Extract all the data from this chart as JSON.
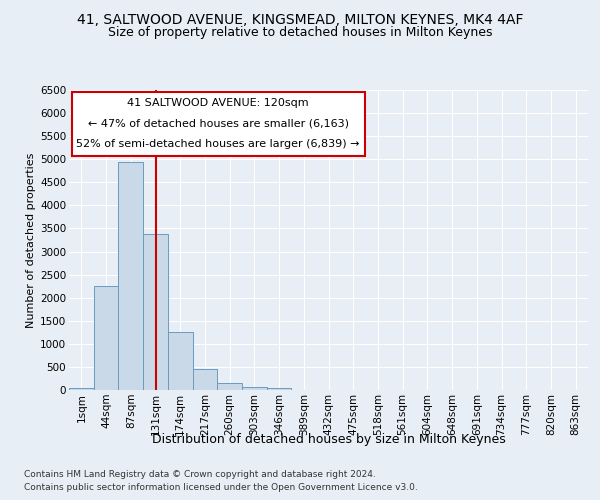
{
  "title_line1": "41, SALTWOOD AVENUE, KINGSMEAD, MILTON KEYNES, MK4 4AF",
  "title_line2": "Size of property relative to detached houses in Milton Keynes",
  "xlabel": "Distribution of detached houses by size in Milton Keynes",
  "ylabel": "Number of detached properties",
  "footer_line1": "Contains HM Land Registry data © Crown copyright and database right 2024.",
  "footer_line2": "Contains public sector information licensed under the Open Government Licence v3.0.",
  "annotation_line1": "41 SALTWOOD AVENUE: 120sqm",
  "annotation_line2": "← 47% of detached houses are smaller (6,163)",
  "annotation_line3": "52% of semi-detached houses are larger (6,839) →",
  "bar_color": "#c9d9e8",
  "bar_edge_color": "#6a9cc0",
  "redline_color": "#cc0000",
  "redline_index": 3,
  "categories": [
    "1sqm",
    "44sqm",
    "87sqm",
    "131sqm",
    "174sqm",
    "217sqm",
    "260sqm",
    "303sqm",
    "346sqm",
    "389sqm",
    "432sqm",
    "475sqm",
    "518sqm",
    "561sqm",
    "604sqm",
    "648sqm",
    "691sqm",
    "734sqm",
    "777sqm",
    "820sqm",
    "863sqm"
  ],
  "values": [
    50,
    2250,
    4950,
    3380,
    1250,
    450,
    150,
    75,
    40,
    10,
    5,
    5,
    0,
    0,
    0,
    0,
    0,
    0,
    0,
    0,
    0
  ],
  "ylim": [
    0,
    6500
  ],
  "yticks": [
    0,
    500,
    1000,
    1500,
    2000,
    2500,
    3000,
    3500,
    4000,
    4500,
    5000,
    5500,
    6000,
    6500
  ],
  "background_color": "#e8eef5",
  "plot_bg_color": "#e8eef5",
  "title_fontsize": 10,
  "subtitle_fontsize": 9,
  "annotation_fontsize": 8,
  "ylabel_fontsize": 8,
  "xlabel_fontsize": 9,
  "tick_fontsize": 7.5,
  "footer_fontsize": 6.5,
  "grid_color": "#ffffff"
}
